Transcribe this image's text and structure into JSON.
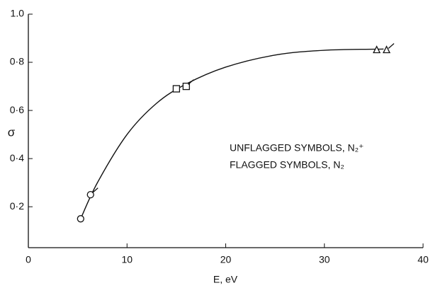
{
  "chart_data": {
    "type": "scatter",
    "xlabel": "E, eV",
    "ylabel": "σ",
    "xlim": [
      0,
      40
    ],
    "ylim": [
      0.03,
      1.0
    ],
    "xticks": [
      0,
      10,
      20,
      30,
      40
    ],
    "yticks": [
      {
        "value": 0.2,
        "label": "0·2"
      },
      {
        "value": 0.4,
        "label": "0·4"
      },
      {
        "value": 0.6,
        "label": "0·6"
      },
      {
        "value": 0.8,
        "label": "0·8"
      },
      {
        "value": 1.0,
        "label": "1.0"
      }
    ],
    "color": "#111111",
    "series": [
      {
        "markers": [
          "circle",
          "square",
          "triangle"
        ],
        "flagged": false,
        "x": [
          5.3,
          15,
          35.3
        ],
        "values": [
          0.15,
          0.69,
          0.85
        ]
      },
      {
        "markers": [
          "circle",
          "square",
          "triangle"
        ],
        "flagged": true,
        "x": [
          6.3,
          16,
          36.3
        ],
        "values": [
          0.25,
          0.7,
          0.85
        ]
      }
    ],
    "curve": {
      "x": [
        5.3,
        7,
        10,
        13,
        16,
        20,
        25,
        30,
        36
      ],
      "values": [
        0.15,
        0.3,
        0.5,
        0.63,
        0.71,
        0.78,
        0.83,
        0.85,
        0.855
      ]
    },
    "annotations": [
      "UNFLAGGED SYMBOLS, N₂⁺",
      "FLAGGED SYMBOLS, N₂"
    ]
  }
}
